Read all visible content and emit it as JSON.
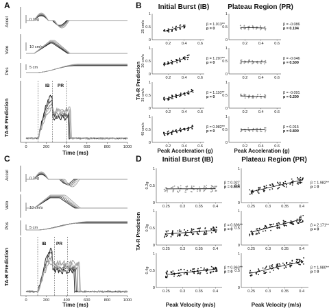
{
  "panels": {
    "A": {
      "letter": "A",
      "rows": [
        "Accel",
        "Velo",
        "Pos",
        "TA-R Prediction"
      ],
      "scales": [
        "0.25g",
        "10 cm/s",
        "5 cm"
      ],
      "markers": [
        "IB",
        "PR"
      ],
      "xticks": [
        "0",
        "200",
        "400",
        "600",
        "800",
        "1000"
      ],
      "xlabel": "Time (ms)"
    },
    "B": {
      "letter": "B",
      "titles": [
        "Initial Burst (IB)",
        "Plateau Region (PR)"
      ],
      "row_labels": [
        "25 cm/s",
        "30 cm/s",
        "35 cm/s",
        "40 cm/s"
      ],
      "ylabel": "TA-R Prediction",
      "xlabel": "Peak Acceleration (g)",
      "xticks": [
        "0.2",
        "0.4",
        "0.6"
      ],
      "yticks": [
        "0",
        "0.5",
        "1"
      ],
      "left_stats": [
        {
          "beta": "β = 1.013**",
          "p": "p = 0"
        },
        {
          "beta": "β = 1.207**",
          "p": "p = 0"
        },
        {
          "beta": "β = 1.110**",
          "p": "p = 0"
        },
        {
          "beta": "β = 0.982**",
          "p": "p = 0"
        }
      ],
      "right_stats": [
        {
          "beta": "β = -0.086",
          "p": "p = 0.194"
        },
        {
          "beta": "β = -0.046",
          "p": "p = 0.500"
        },
        {
          "beta": "β = -0.091",
          "p": "p = 0.200"
        },
        {
          "beta": "β = 0.015",
          "p": "p = 0.800"
        }
      ]
    },
    "C": {
      "letter": "C",
      "rows": [
        "Accel",
        "Velo",
        "Pos",
        "TA-R Prediction"
      ],
      "scales": [
        "0.25g",
        "10 cm/s",
        "5 cm"
      ],
      "markers": [
        "IB",
        "PR"
      ],
      "xticks": [
        "0",
        "200",
        "400",
        "600",
        "800",
        "1000"
      ],
      "xlabel": "Time (ms)"
    },
    "D": {
      "letter": "D",
      "titles": [
        "Initial Burst (IB)",
        "Plateau Region (PR)"
      ],
      "row_labels": [
        "0.2g",
        "0.3g",
        "0.4g"
      ],
      "ylabel": "TA-R Prediction",
      "xlabel": "Peak Velocity (m/s)",
      "xticks": [
        "0.25",
        "0.3",
        "0.35",
        "0.4"
      ],
      "yticks": [
        "0",
        "0.5",
        "1"
      ],
      "left_stats": [
        {
          "beta": "β = 0.027",
          "p": "p = 0.835"
        },
        {
          "beta": "β = 0.696**",
          "p": "p = 0"
        },
        {
          "beta": "β = 0.963**",
          "p": "p = 0"
        }
      ],
      "right_stats": [
        {
          "beta": "β = 1.982**",
          "p": "p = 0"
        },
        {
          "beta": "β = 2.171**",
          "p": "p = 0"
        },
        {
          "beta": "β = 1.980**",
          "p": "p = 0"
        }
      ]
    }
  },
  "colors": {
    "dark": "#111111",
    "mid": "#6e6e6e",
    "light": "#b4b4b4"
  }
}
